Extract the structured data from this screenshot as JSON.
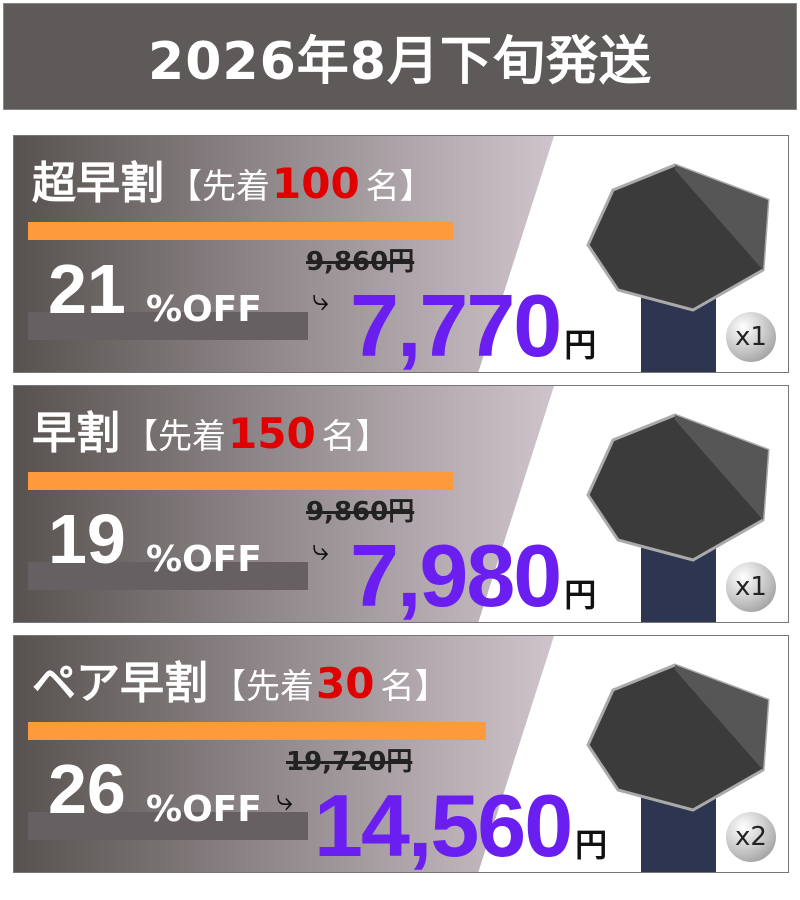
{
  "header": {
    "title": "2026年8月下旬発送"
  },
  "cards": [
    {
      "name": "超早割",
      "bracket_open": "【先着",
      "count": "100",
      "bracket_close": "名】",
      "percent": "21",
      "off": "%OFF",
      "old_price": "9,860円",
      "new_price": "7,770",
      "yen": "円",
      "qty": "x1"
    },
    {
      "name": "早割",
      "bracket_open": "【先着",
      "count": "150",
      "bracket_close": "名】",
      "percent": "19",
      "off": "%OFF",
      "old_price": "9,860円",
      "new_price": "7,980",
      "yen": "円",
      "qty": "x1"
    },
    {
      "name": "ペア早割",
      "bracket_open": "【先着",
      "count": "30",
      "bracket_close": "名】",
      "percent": "26",
      "off": "%OFF",
      "old_price": "19,720円",
      "new_price": "14,560",
      "yen": "円",
      "qty": "x2"
    }
  ],
  "colors": {
    "accent_price": "#6a1ef0",
    "count_red": "#e00000",
    "bar_orange": "#ff9a3c",
    "header_bg": "#5f5a5a"
  }
}
